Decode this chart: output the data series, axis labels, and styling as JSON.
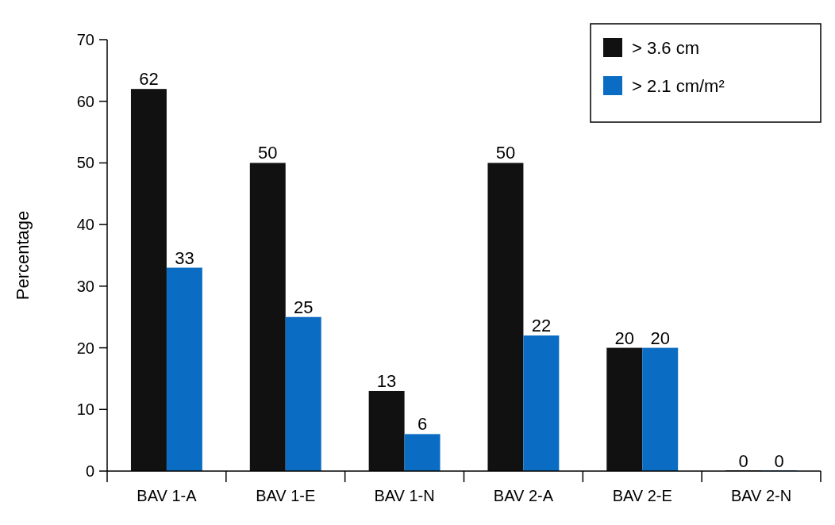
{
  "chart_data": {
    "type": "bar",
    "ylabel": "Percentage",
    "categories": [
      "BAV 1-A",
      "BAV 1-E",
      "BAV 1-N",
      "BAV 2-A",
      "BAV 2-E",
      "BAV 2-N"
    ],
    "series": [
      {
        "name": "> 3.6 cm",
        "color": "#111111",
        "values": [
          62,
          50,
          13,
          50,
          20,
          0
        ]
      },
      {
        "name": "> 2.1 cm/m²",
        "color": "#0b6cc4",
        "values": [
          33,
          25,
          6,
          22,
          20,
          0
        ]
      }
    ],
    "ylim": [
      0,
      70
    ],
    "yticks": [
      0,
      10,
      20,
      30,
      40,
      50,
      60,
      70
    ],
    "data_labels": true,
    "legend": "top right",
    "grid": false
  }
}
